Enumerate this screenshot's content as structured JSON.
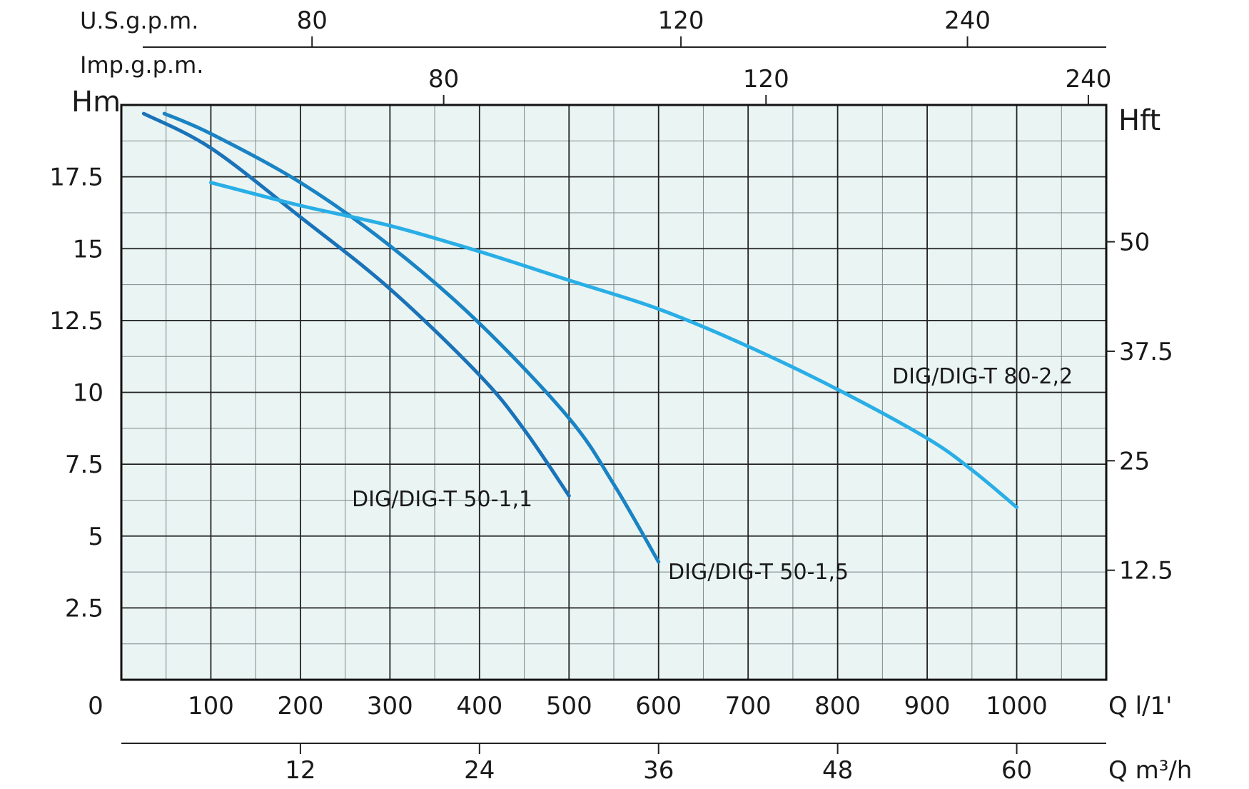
{
  "chart_data": {
    "type": "line",
    "title": "",
    "background_color": "#eaf4f3",
    "grid": true,
    "x_primary": {
      "label": "Q l/1'",
      "range": [
        0,
        1100
      ],
      "ticks": [
        "0",
        "100",
        "200",
        "300",
        "400",
        "500",
        "600",
        "700",
        "800",
        "900",
        "1000"
      ]
    },
    "x_m3h": {
      "label": "Q m³/h",
      "ticks": [
        {
          "value": 12,
          "text": "12"
        },
        {
          "value": 24,
          "text": "24"
        },
        {
          "value": 36,
          "text": "36"
        },
        {
          "value": 48,
          "text": "48"
        },
        {
          "value": 60,
          "text": "60"
        }
      ]
    },
    "x_usgpm": {
      "label": "U.S.g.p.m.",
      "ticks": [
        {
          "at_lpm": 213,
          "text": "80"
        },
        {
          "at_lpm": 625,
          "text": "120"
        },
        {
          "at_lpm": 945,
          "text": "240"
        }
      ]
    },
    "x_impgpm": {
      "label": "Imp.g.p.m.",
      "ticks": [
        {
          "at_lpm": 360,
          "text": "80"
        },
        {
          "at_lpm": 720,
          "text": "120"
        },
        {
          "at_lpm": 1080,
          "text": "240"
        }
      ]
    },
    "y_left": {
      "label": "Hm",
      "range": [
        0,
        20
      ],
      "ticks": [
        "2.5",
        "5",
        "7.5",
        "10",
        "12.5",
        "15",
        "17.5"
      ]
    },
    "y_right": {
      "label": "Hft",
      "ticks": [
        {
          "value": 12.5,
          "text": "12.5"
        },
        {
          "value": 25,
          "text": "25"
        },
        {
          "value": 37.5,
          "text": "37.5"
        },
        {
          "value": 50,
          "text": "50"
        }
      ]
    },
    "series": [
      {
        "name": "DIG/DIG-T 50-1,1",
        "color": "#1a73b8",
        "x": [
          25,
          100,
          200,
          300,
          400,
          450,
          500
        ],
        "y": [
          19.7,
          18.5,
          16.1,
          13.6,
          10.6,
          8.7,
          6.4
        ]
      },
      {
        "name": "DIG/DIG-T 50-1,5",
        "color": "#1a83c4",
        "x": [
          48,
          100,
          200,
          300,
          400,
          500,
          550,
          600
        ],
        "y": [
          19.7,
          19.0,
          17.3,
          15.1,
          12.4,
          9.1,
          6.8,
          4.1
        ]
      },
      {
        "name": "DIG/DIG-T 80-2,2",
        "color": "#29aee6",
        "x": [
          100,
          200,
          300,
          400,
          500,
          600,
          700,
          800,
          900,
          950,
          1000
        ],
        "y": [
          17.3,
          16.5,
          15.8,
          14.9,
          13.9,
          12.9,
          11.6,
          10.1,
          8.4,
          7.3,
          6.0
        ]
      }
    ]
  }
}
